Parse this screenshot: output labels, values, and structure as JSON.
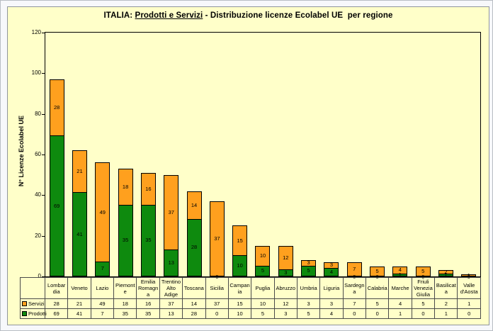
{
  "title": {
    "prefix": "ITALIA: ",
    "underlined": "Prodotti e Servizi",
    "suffix": " - Distribuzione licenze Ecolabel UE  per regione"
  },
  "chart_data": {
    "type": "bar",
    "stacked": true,
    "title": "ITALIA: Prodotti e Servizi - Distribuzione licenze Ecolabel UE  per regione",
    "ylabel": "N° Licenze  Ecolabel  UE",
    "xlabel": "",
    "ylim": [
      0,
      120
    ],
    "yticks": [
      0,
      20,
      40,
      60,
      80,
      100,
      120
    ],
    "grid": false,
    "legend_position": "data-table-left",
    "categories": [
      "Lombardia",
      "Veneto",
      "Lazio",
      "Piemonte",
      "Emilia Romagna",
      "Trentino Alto Adige",
      "Toscana",
      "Sicilia",
      "Campania",
      "Puglia",
      "Abruzzo",
      "Umbria",
      "Liguria",
      "Sardegna",
      "Calabria",
      "Marche",
      "Friuli Venezia Giulia",
      "Basilicata",
      "Valle d'Aosta"
    ],
    "categories_wrapped": [
      [
        "Lombar",
        "dia"
      ],
      [
        "Veneto"
      ],
      [
        "Lazio"
      ],
      [
        "Piemont",
        "e"
      ],
      [
        "Emilia",
        "Romagn",
        "a"
      ],
      [
        "Trentino",
        "Alto",
        "Adige"
      ],
      [
        "Toscana"
      ],
      [
        "Sicilia"
      ],
      [
        "Campan",
        "ia"
      ],
      [
        "Puglia"
      ],
      [
        "Abruzzo"
      ],
      [
        "Umbria"
      ],
      [
        "Liguria"
      ],
      [
        "Sardegn",
        "a"
      ],
      [
        "Calabria"
      ],
      [
        "Marche"
      ],
      [
        "Friuli",
        "Venezia",
        "Giulia"
      ],
      [
        "Basilicat",
        "a"
      ],
      [
        "Valle",
        "d'Aosta"
      ]
    ],
    "series": [
      {
        "name": "Servizi",
        "color": "#ffa01e",
        "values": [
          28,
          21,
          49,
          18,
          16,
          37,
          14,
          37,
          15,
          10,
          12,
          3,
          3,
          7,
          5,
          4,
          5,
          2,
          1
        ]
      },
      {
        "name": "Prodotti",
        "color": "#0e8a0e",
        "values": [
          69,
          41,
          7,
          35,
          35,
          13,
          28,
          0,
          10,
          5,
          3,
          5,
          4,
          0,
          0,
          1,
          0,
          1,
          0
        ]
      }
    ],
    "colors": {
      "servizi": "#ffa01e",
      "prodotti": "#0e8a0e",
      "chart_background": "#ffffc9",
      "plot_border": "#000000",
      "table_border": "#4a4a4a"
    }
  }
}
